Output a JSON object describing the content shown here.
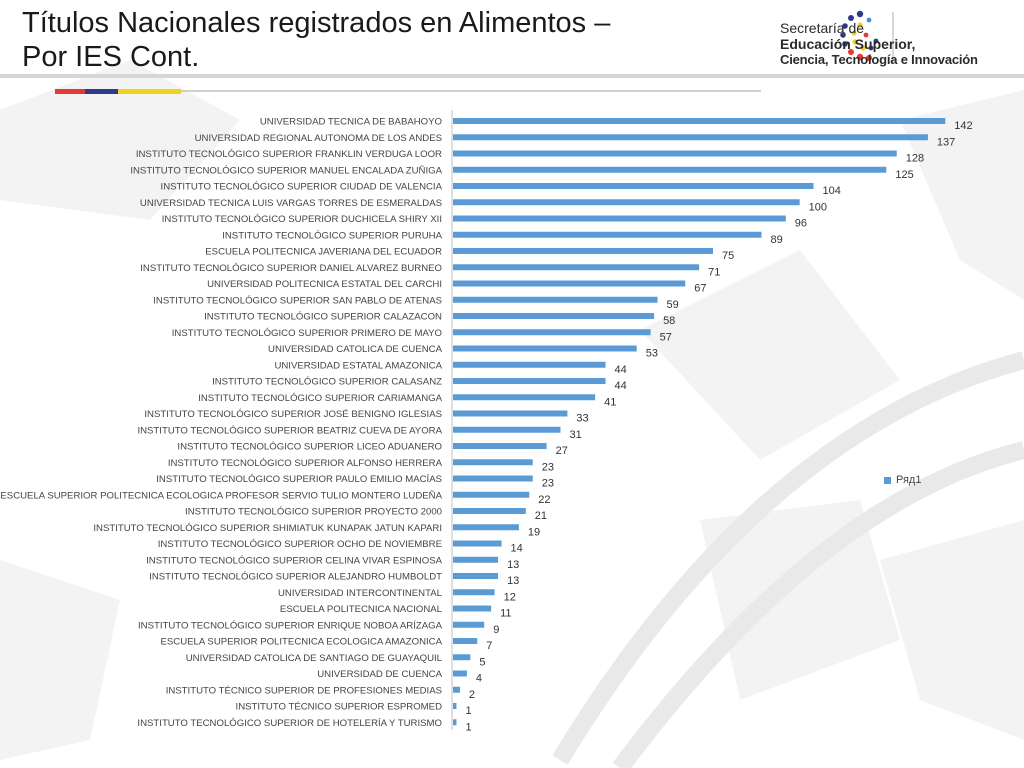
{
  "slide": {
    "title_line1": "Títulos Nacionales registrados en Alimentos –",
    "title_line2": "Por IES Cont.",
    "accent_colors": [
      "#e53935",
      "#2e3a87",
      "#f2d31b"
    ]
  },
  "logo": {
    "line1": "Secretaría de",
    "line2": "Educación Superior,",
    "line3": "Ciencia, Tecnología e Innovación"
  },
  "chart_data": {
    "type": "bar",
    "orientation": "horizontal",
    "bar_color": "#5b9bd5",
    "legend_placement": "right",
    "grid": false,
    "xlim": [
      0,
      150
    ],
    "categories": [
      "UNIVERSIDAD TECNICA DE BABAHOYO",
      "UNIVERSIDAD REGIONAL AUTONOMA DE LOS ANDES",
      "INSTITUTO TECNOLÓGICO SUPERIOR FRANKLIN VERDUGA LOOR",
      "INSTITUTO TECNOLÓGICO SUPERIOR MANUEL ENCALADA ZUÑIGA",
      "INSTITUTO TECNOLÓGICO SUPERIOR CIUDAD DE VALENCIA",
      "UNIVERSIDAD TECNICA LUIS VARGAS TORRES DE ESMERALDAS",
      "INSTITUTO TECNOLÓGICO SUPERIOR DUCHICELA SHIRY XII",
      "INSTITUTO TECNOLÓGICO SUPERIOR PURUHA",
      "ESCUELA POLITECNICA JAVERIANA DEL ECUADOR",
      "INSTITUTO TECNOLÓGICO SUPERIOR DANIEL ALVAREZ BURNEO",
      "UNIVERSIDAD POLITECNICA ESTATAL DEL CARCHI",
      "INSTITUTO TECNOLÓGICO SUPERIOR SAN PABLO DE ATENAS",
      "INSTITUTO TECNOLÓGICO SUPERIOR CALAZACON",
      "INSTITUTO TECNOLÓGICO SUPERIOR PRIMERO DE MAYO",
      "UNIVERSIDAD CATOLICA DE CUENCA",
      "UNIVERSIDAD ESTATAL AMAZONICA",
      "INSTITUTO TECNOLÓGICO SUPERIOR CALASANZ",
      "INSTITUTO TECNOLÓGICO SUPERIOR CARIAMANGA",
      "INSTITUTO TECNOLÓGICO SUPERIOR JOSÉ BENIGNO IGLESIAS",
      "INSTITUTO TECNOLÓGICO SUPERIOR BEATRIZ CUEVA DE AYORA",
      "INSTITUTO TECNOLÓGICO SUPERIOR LICEO ADUANERO",
      "INSTITUTO TECNOLÓGICO SUPERIOR ALFONSO HERRERA",
      "INSTITUTO TECNOLÓGICO SUPERIOR PAULO EMILIO MACÍAS",
      "ESCUELA SUPERIOR POLITECNICA ECOLOGICA PROFESOR SERVIO TULIO MONTERO LUDEÑA",
      "INSTITUTO TECNOLÓGICO SUPERIOR PROYECTO 2000",
      "INSTITUTO TECNOLÓGICO SUPERIOR SHIMIATUK KUNAPAK JATUN KAPARI",
      "INSTITUTO TECNOLÓGICO SUPERIOR OCHO DE NOVIEMBRE",
      "INSTITUTO TECNOLÓGICO SUPERIOR CELINA VIVAR ESPINOSA",
      "INSTITUTO TECNOLÓGICO SUPERIOR ALEJANDRO HUMBOLDT",
      "UNIVERSIDAD INTERCONTINENTAL",
      "ESCUELA POLITECNICA NACIONAL",
      "INSTITUTO TECNOLÓGICO SUPERIOR ENRIQUE NOBOA ARÍZAGA",
      "ESCUELA SUPERIOR POLITECNICA ECOLOGICA AMAZONICA",
      "UNIVERSIDAD CATOLICA DE SANTIAGO DE GUAYAQUIL",
      "UNIVERSIDAD DE CUENCA",
      "INSTITUTO TÉCNICO SUPERIOR DE PROFESIONES MEDIAS",
      "INSTITUTO TÉCNICO SUPERIOR ESPROMED",
      "INSTITUTO TECNOLÓGICO SUPERIOR DE HOTELERÍA Y TURISMO"
    ],
    "series": [
      {
        "name": "Ряд1",
        "values": [
          142,
          137,
          128,
          125,
          104,
          100,
          96,
          89,
          75,
          71,
          67,
          59,
          58,
          57,
          53,
          44,
          44,
          41,
          33,
          31,
          27,
          23,
          23,
          22,
          21,
          19,
          14,
          13,
          13,
          12,
          11,
          9,
          7,
          5,
          4,
          2,
          1,
          1
        ]
      }
    ]
  }
}
